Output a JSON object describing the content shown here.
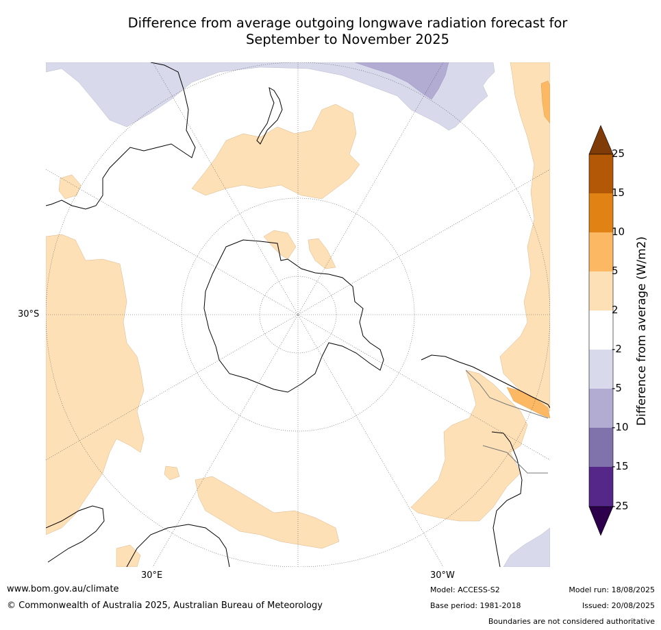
{
  "title": {
    "line1": "Difference from average outgoing longwave radiation forecast for",
    "line2": "September to November 2025"
  },
  "map": {
    "projection": "south-polar-stereographic",
    "graticule_labels": {
      "lat_30s": "30°S",
      "lon_30e": "30°E",
      "lon_30w": "30°W"
    }
  },
  "colorbar": {
    "label": "Difference from average (W/m2)",
    "ticks": [
      "25",
      "15",
      "10",
      "5",
      "2",
      "-2",
      "-5",
      "-10",
      "-15",
      "-25"
    ],
    "colors": {
      "over": "#7f3b08",
      "15_25": "#b35806",
      "10_15": "#e08214",
      "5_10": "#fdb863",
      "2_5": "#fee0b6",
      "neg2_2": "#ffffff",
      "neg5_neg2": "#d8daeb",
      "neg10_neg5": "#b2abd2",
      "neg15_neg10": "#8073ac",
      "neg25_neg15": "#542788",
      "under": "#2d004b"
    }
  },
  "footer": {
    "website": "www.bom.gov.au/climate",
    "copyright": "© Commonwealth of Australia 2025, Australian Bureau of Meteorology",
    "model": "Model: ACCESS-S2",
    "base_period": "Base period: 1981-2018",
    "model_run": "Model run: 18/08/2025",
    "issued": "Issued: 20/08/2025",
    "disclaimer": "Boundaries are not considered authoritative"
  }
}
